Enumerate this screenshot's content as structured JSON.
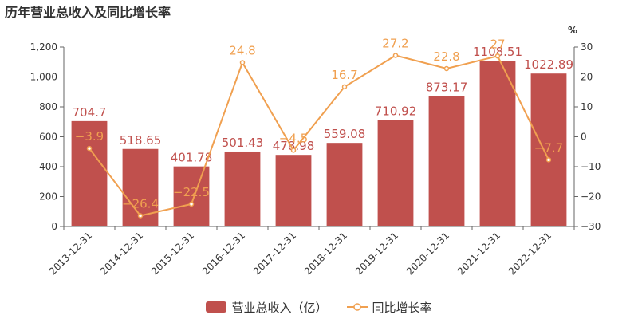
{
  "chart_data": {
    "type": "bar+line",
    "title": "历年营业总收入及同比增长率",
    "categories": [
      "2013-12-31",
      "2014-12-31",
      "2015-12-31",
      "2016-12-31",
      "2017-12-31",
      "2018-12-31",
      "2019-12-31",
      "2020-12-31",
      "2021-12-31",
      "2022-12-31"
    ],
    "series": [
      {
        "name": "营业总收入（亿）",
        "type": "bar",
        "axis": "left",
        "color": "#c0504d",
        "values": [
          704.7,
          518.65,
          401.78,
          501.43,
          478.98,
          559.08,
          710.92,
          873.17,
          1108.51,
          1022.89
        ],
        "labels": [
          "704.7",
          "518.65",
          "401.78",
          "501.43",
          "478.98",
          "559.08",
          "710.92",
          "873.17",
          "1108.51",
          "1022.89"
        ]
      },
      {
        "name": "同比增长率",
        "type": "line",
        "axis": "right",
        "color": "#f0a050",
        "values": [
          -3.9,
          -26.4,
          -22.5,
          24.8,
          -4.5,
          16.7,
          27.2,
          22.8,
          27,
          -7.7
        ],
        "labels": [
          "−3.9",
          "−26.4",
          "−22.5",
          "24.8",
          "−4.5",
          "16.7",
          "27.2",
          "22.8",
          "27",
          "−7.7"
        ]
      }
    ],
    "y_left": {
      "min": 0,
      "max": 1200,
      "ticks": [
        0,
        200,
        400,
        600,
        800,
        1000,
        1200
      ],
      "tick_labels": [
        "0",
        "200",
        "400",
        "600",
        "800",
        "1,000",
        "1,200"
      ]
    },
    "y_right": {
      "min": -30,
      "max": 30,
      "ticks": [
        -30,
        -20,
        -10,
        0,
        10,
        20,
        30
      ],
      "tick_labels": [
        "−30",
        "−20",
        "−10",
        "0",
        "10",
        "20",
        "30"
      ],
      "unit": "%"
    },
    "legend_position": "bottom",
    "grid": false
  }
}
